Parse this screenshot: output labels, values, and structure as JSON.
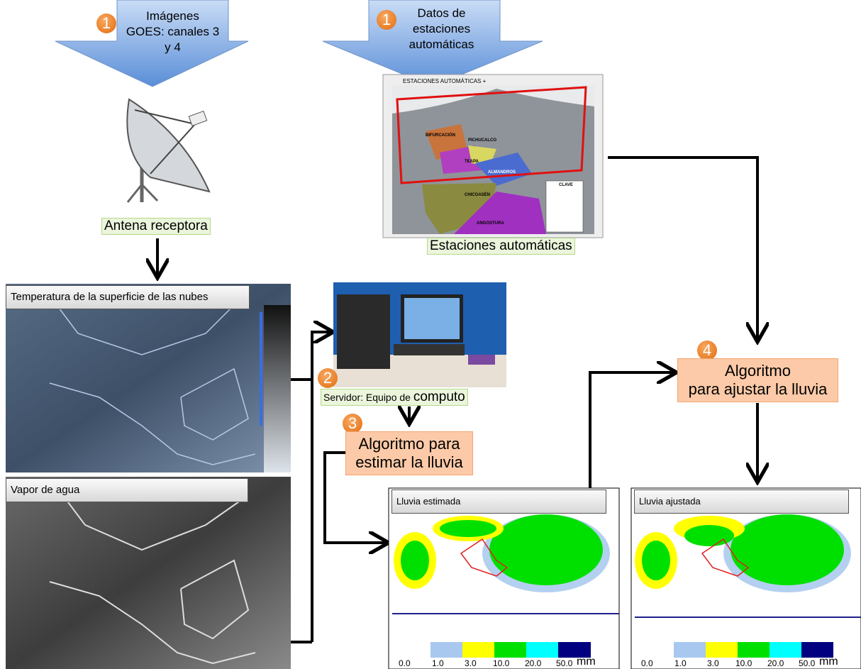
{
  "inputs": [
    {
      "step": "1",
      "lines": [
        "Imágenes",
        "GOES: canales 3",
        "y 4"
      ]
    },
    {
      "step": "1",
      "lines": [
        "Datos de",
        "estaciones",
        "automáticas"
      ]
    }
  ],
  "antenna": {
    "label": "Antena receptora"
  },
  "stations_map": {
    "title": "ESTACIONES AUTOMÁTICAS +",
    "regions": [
      "BIFURCACIÓN",
      "PICHUCALCO",
      "TEAPA",
      "ALMANDROS",
      "CHICOASÉN",
      "ANGOSTURA"
    ],
    "key": "CLAVE",
    "caption": "Estaciones automáticas"
  },
  "satellite_images": [
    {
      "title": "Temperatura de la superficie de las nubes"
    },
    {
      "title": "Vapor de agua"
    }
  ],
  "server": {
    "step": "2",
    "label": "Servidor: Equipo de",
    "label_large": "computo"
  },
  "algorithms": [
    {
      "step": "3",
      "lines": [
        "Algoritmo para",
        "estimar la lluvia"
      ]
    },
    {
      "step": "4",
      "lines": [
        "Algoritmo",
        "para ajustar la lluvia"
      ]
    }
  ],
  "rain_maps": [
    {
      "title": "Lluvia estimada"
    },
    {
      "title": "Lluvia ajustada"
    }
  ],
  "legend": {
    "labels": [
      "0.0",
      "1.0",
      "3.0",
      "10.0",
      "20.0",
      "50.0"
    ],
    "unit": "mm"
  }
}
